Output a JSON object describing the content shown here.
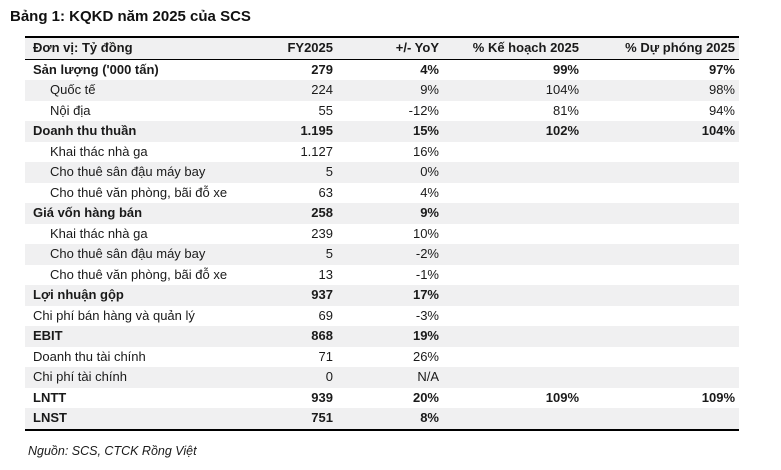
{
  "page": {
    "title": "Bảng 1: KQKD năm 2025 của SCS",
    "source_note": "Nguồn: SCS, CTCK Rồng Việt"
  },
  "colors": {
    "band": "#f0f0f1",
    "border": "#000000",
    "text": "#1a1a1a"
  },
  "table": {
    "columns": [
      "Đơn vị: Tỷ đồng",
      "FY2025",
      "+/- YoY",
      "% Kế hoạch 2025",
      "% Dự phóng 2025"
    ],
    "rows": [
      {
        "label": "Sản lượng ('000 tấn)",
        "fy2025": "279",
        "yoy": "4%",
        "ke_hoach": "99%",
        "du_phong": "97%",
        "bold": true,
        "indent": false
      },
      {
        "label": "Quốc tế",
        "fy2025": "224",
        "yoy": "9%",
        "ke_hoach": "104%",
        "du_phong": "98%",
        "bold": false,
        "indent": true
      },
      {
        "label": "Nội địa",
        "fy2025": "55",
        "yoy": "-12%",
        "ke_hoach": "81%",
        "du_phong": "94%",
        "bold": false,
        "indent": true
      },
      {
        "label": "Doanh thu thuần",
        "fy2025": "1.195",
        "yoy": "15%",
        "ke_hoach": "102%",
        "du_phong": "104%",
        "bold": true,
        "indent": false
      },
      {
        "label": "Khai thác nhà ga",
        "fy2025": "1.127",
        "yoy": "16%",
        "ke_hoach": "",
        "du_phong": "",
        "bold": false,
        "indent": true
      },
      {
        "label": "Cho thuê sân đậu máy bay",
        "fy2025": "5",
        "yoy": "0%",
        "ke_hoach": "",
        "du_phong": "",
        "bold": false,
        "indent": true
      },
      {
        "label": "Cho thuê văn phòng, bãi đỗ xe",
        "fy2025": "63",
        "yoy": "4%",
        "ke_hoach": "",
        "du_phong": "",
        "bold": false,
        "indent": true
      },
      {
        "label": "Giá vốn hàng bán",
        "fy2025": "258",
        "yoy": "9%",
        "ke_hoach": "",
        "du_phong": "",
        "bold": true,
        "indent": false
      },
      {
        "label": "Khai thác nhà ga",
        "fy2025": "239",
        "yoy": "10%",
        "ke_hoach": "",
        "du_phong": "",
        "bold": false,
        "indent": true
      },
      {
        "label": "Cho thuê sân đậu máy bay",
        "fy2025": "5",
        "yoy": "-2%",
        "ke_hoach": "",
        "du_phong": "",
        "bold": false,
        "indent": true
      },
      {
        "label": "Cho thuê văn phòng, bãi đỗ xe",
        "fy2025": "13",
        "yoy": "-1%",
        "ke_hoach": "",
        "du_phong": "",
        "bold": false,
        "indent": true
      },
      {
        "label": "Lợi nhuận gộp",
        "fy2025": "937",
        "yoy": "17%",
        "ke_hoach": "",
        "du_phong": "",
        "bold": true,
        "indent": false
      },
      {
        "label": "Chi phí bán hàng và quản lý",
        "fy2025": "69",
        "yoy": "-3%",
        "ke_hoach": "",
        "du_phong": "",
        "bold": false,
        "indent": false
      },
      {
        "label": "EBIT",
        "fy2025": "868",
        "yoy": "19%",
        "ke_hoach": "",
        "du_phong": "",
        "bold": true,
        "indent": false
      },
      {
        "label": "Doanh thu tài chính",
        "fy2025": "71",
        "yoy": "26%",
        "ke_hoach": "",
        "du_phong": "",
        "bold": false,
        "indent": false
      },
      {
        "label": "Chi phí tài chính",
        "fy2025": "0",
        "yoy": "N/A",
        "ke_hoach": "",
        "du_phong": "",
        "bold": false,
        "indent": false
      },
      {
        "label": "LNTT",
        "fy2025": "939",
        "yoy": "20%",
        "ke_hoach": "109%",
        "du_phong": "109%",
        "bold": true,
        "indent": false
      },
      {
        "label": "LNST",
        "fy2025": "751",
        "yoy": "8%",
        "ke_hoach": "",
        "du_phong": "",
        "bold": true,
        "indent": false
      }
    ]
  }
}
